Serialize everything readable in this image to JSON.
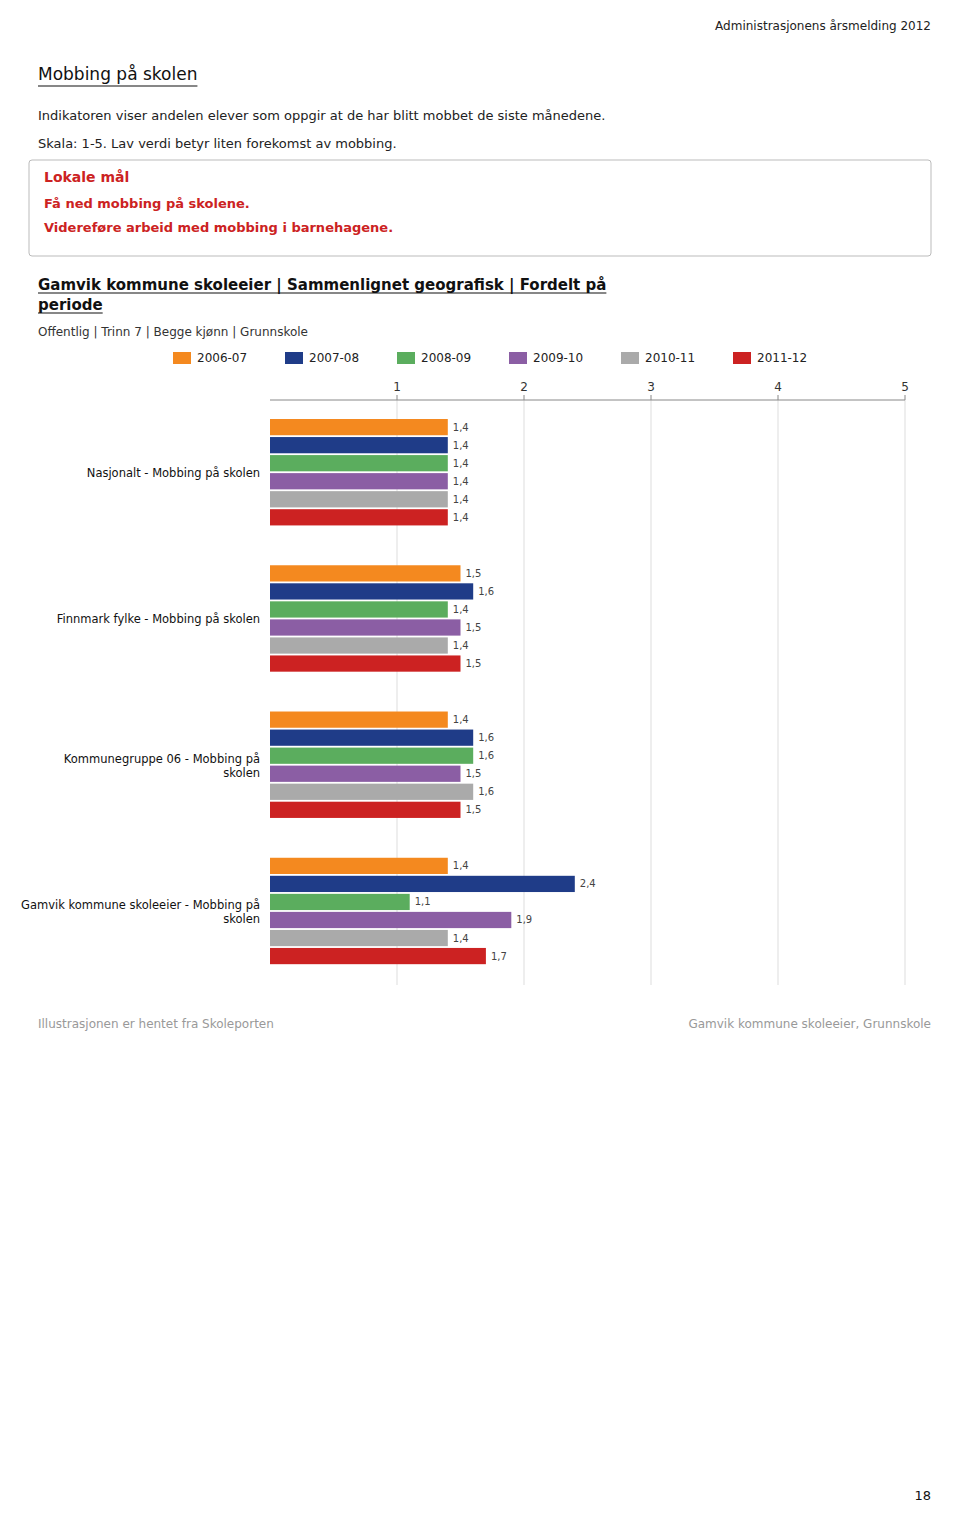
{
  "page_title": "Administrasjonens årsmelding 2012",
  "section_title": "Mobbing på skolen",
  "intro_text": "Indikatoren viser andelen elever som oppgir at de har blitt mobbet de siste månedene.",
  "scale_text": "Skala: 1-5. Lav verdi betyr liten forekomst av mobbing.",
  "lokale_mal_title": "Lokale mål",
  "lokale_mal_lines": [
    "Få ned mobbing på skolene.",
    "Videreføre arbeid med mobbing i barnehagene."
  ],
  "footer_left": "Illustrasjonen er hentet fra Skoleporten",
  "footer_right": "Gamvik kommune skoleeier, Grunnskole",
  "page_number": "18",
  "chart_data": {
    "type": "bar",
    "orientation": "horizontal",
    "title": "Gamvik kommune skoleeier | Sammenlignet geografisk | Fordelt på\nperiode",
    "subtitle": "Offentlig | Trinn 7 | Begge kjønn | Grunnskole",
    "categories": [
      "Gamvik kommune skoleeier - Mobbing på\nskolen",
      "Kommunegruppe 06 - Mobbing på\nskolen",
      "Finnmark fylke - Mobbing på skolen",
      "Nasjonalt - Mobbing på skolen"
    ],
    "series": [
      {
        "name": "2006-07",
        "color": "#F4891F",
        "values": [
          1.4,
          1.4,
          1.5,
          1.4
        ],
        "value_labels": [
          "1,4",
          "1,4",
          "1,5",
          "1,4"
        ]
      },
      {
        "name": "2007-08",
        "color": "#1F3C88",
        "values": [
          2.4,
          1.6,
          1.6,
          1.4
        ],
        "value_labels": [
          "2,4",
          "1,6",
          "1,6",
          "1,4"
        ]
      },
      {
        "name": "2008-09",
        "color": "#5BAD5E",
        "values": [
          1.1,
          1.6,
          1.4,
          1.4
        ],
        "value_labels": [
          "1,1",
          "1,6",
          "1,4",
          "1,4"
        ]
      },
      {
        "name": "2009-10",
        "color": "#8B5EA4",
        "values": [
          1.9,
          1.5,
          1.5,
          1.4
        ],
        "value_labels": [
          "1,9",
          "1,5",
          "1,5",
          "1,4"
        ]
      },
      {
        "name": "2010-11",
        "color": "#AAAAAA",
        "values": [
          1.4,
          1.6,
          1.4,
          1.4
        ],
        "value_labels": [
          "1,4",
          "1,6",
          "1,4",
          "1,4"
        ]
      },
      {
        "name": "2011-12",
        "color": "#CC2222",
        "values": [
          1.7,
          1.5,
          1.5,
          1.4
        ],
        "value_labels": [
          "1,7",
          "1,5",
          "1,5",
          "1,4"
        ]
      }
    ],
    "xlim": [
      0,
      5
    ],
    "xticks": [
      1,
      2,
      3,
      4,
      5
    ],
    "grid": true,
    "legend": "top",
    "data_labels": true
  }
}
